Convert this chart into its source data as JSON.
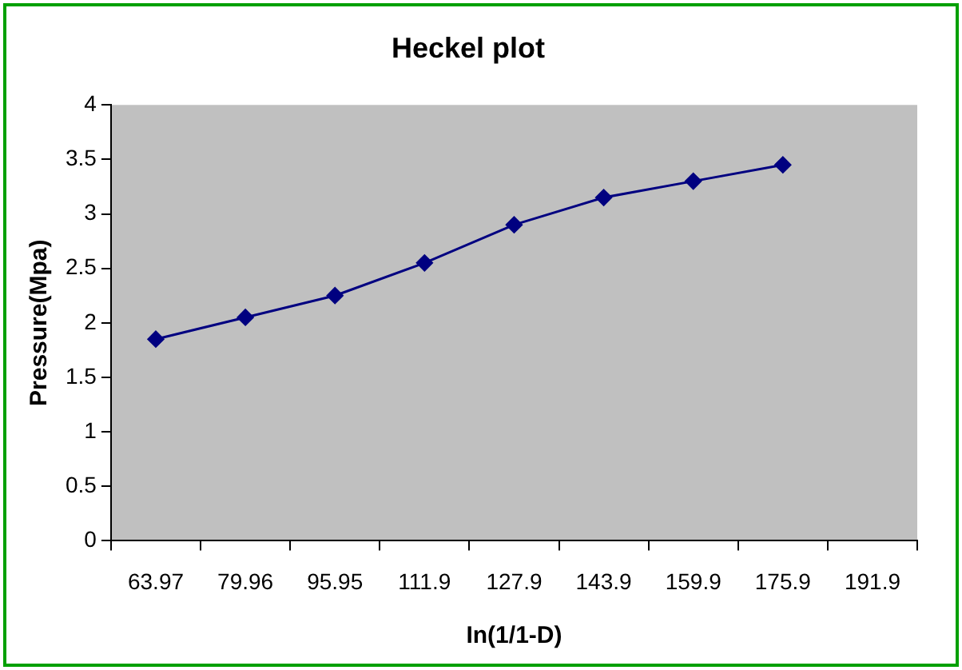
{
  "chart_data": {
    "type": "line",
    "title": "Heckel plot",
    "xlabel": "In(1/1-D)",
    "ylabel": "Pressure(Mpa)",
    "categories": [
      "63.97",
      "79.96",
      "95.95",
      "111.9",
      "127.9",
      "143.9",
      "159.9",
      "175.9",
      "191.9"
    ],
    "series": [
      {
        "color": "#000080",
        "values": [
          1.85,
          2.05,
          2.25,
          2.55,
          2.9,
          3.15,
          3.3,
          3.45,
          null
        ]
      }
    ],
    "ylim": [
      0,
      4
    ],
    "yticks": [
      0,
      0.5,
      1,
      1.5,
      2,
      2.5,
      3,
      3.5,
      4
    ],
    "grid": false,
    "legend": false,
    "marker": "diamond",
    "line_style": "solid"
  }
}
